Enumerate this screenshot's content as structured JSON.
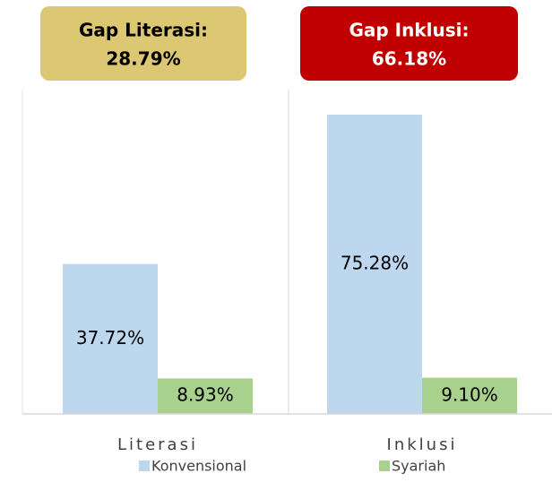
{
  "chart_data": {
    "type": "bar",
    "annotations": [
      {
        "title": "Gap Literasi:",
        "label": "28.79%",
        "color": "#dcc773",
        "text_color": "#000000"
      },
      {
        "title": "Gap Inklusi:",
        "label": "66.18%",
        "color": "#c00000",
        "text_color": "#ffffff"
      }
    ],
    "categories": [
      "Literasi",
      "Inklusi"
    ],
    "series": [
      {
        "name": "Konvensional",
        "color": "#bdd7ee",
        "values": [
          37.72,
          75.28
        ],
        "value_labels": [
          "37.72%",
          "75.28%"
        ]
      },
      {
        "name": "Syariah",
        "color": "#a9d18e",
        "values": [
          8.93,
          9.1
        ],
        "value_labels": [
          "8.93%",
          "9.10%"
        ]
      }
    ],
    "ylim": [
      0,
      80
    ]
  }
}
